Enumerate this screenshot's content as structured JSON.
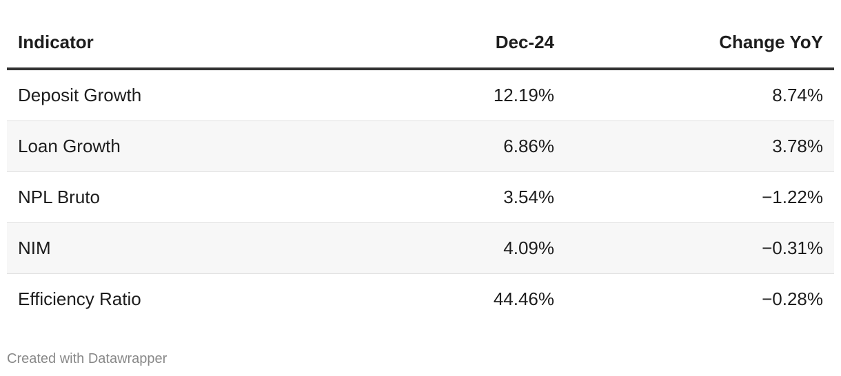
{
  "chart_data": {
    "type": "table",
    "columns": [
      "Indicator",
      "Dec-24",
      "Change YoY"
    ],
    "rows": [
      {
        "indicator": "Deposit Growth",
        "dec24": "12.19%",
        "change_yoy": "8.74%"
      },
      {
        "indicator": "Loan Growth",
        "dec24": "6.86%",
        "change_yoy": "3.78%"
      },
      {
        "indicator": "NPL Bruto",
        "dec24": "3.54%",
        "change_yoy": "−1.22%"
      },
      {
        "indicator": "NIM",
        "dec24": "4.09%",
        "change_yoy": "−0.31%"
      },
      {
        "indicator": "Efficiency Ratio",
        "dec24": "44.46%",
        "change_yoy": "−0.28%"
      }
    ]
  },
  "footer": {
    "credit": "Created with Datawrapper"
  },
  "colors": {
    "header_rule": "#333333",
    "row_divider": "#dedede",
    "alt_row_bg": "#f7f7f7",
    "footer_text": "#888888"
  }
}
